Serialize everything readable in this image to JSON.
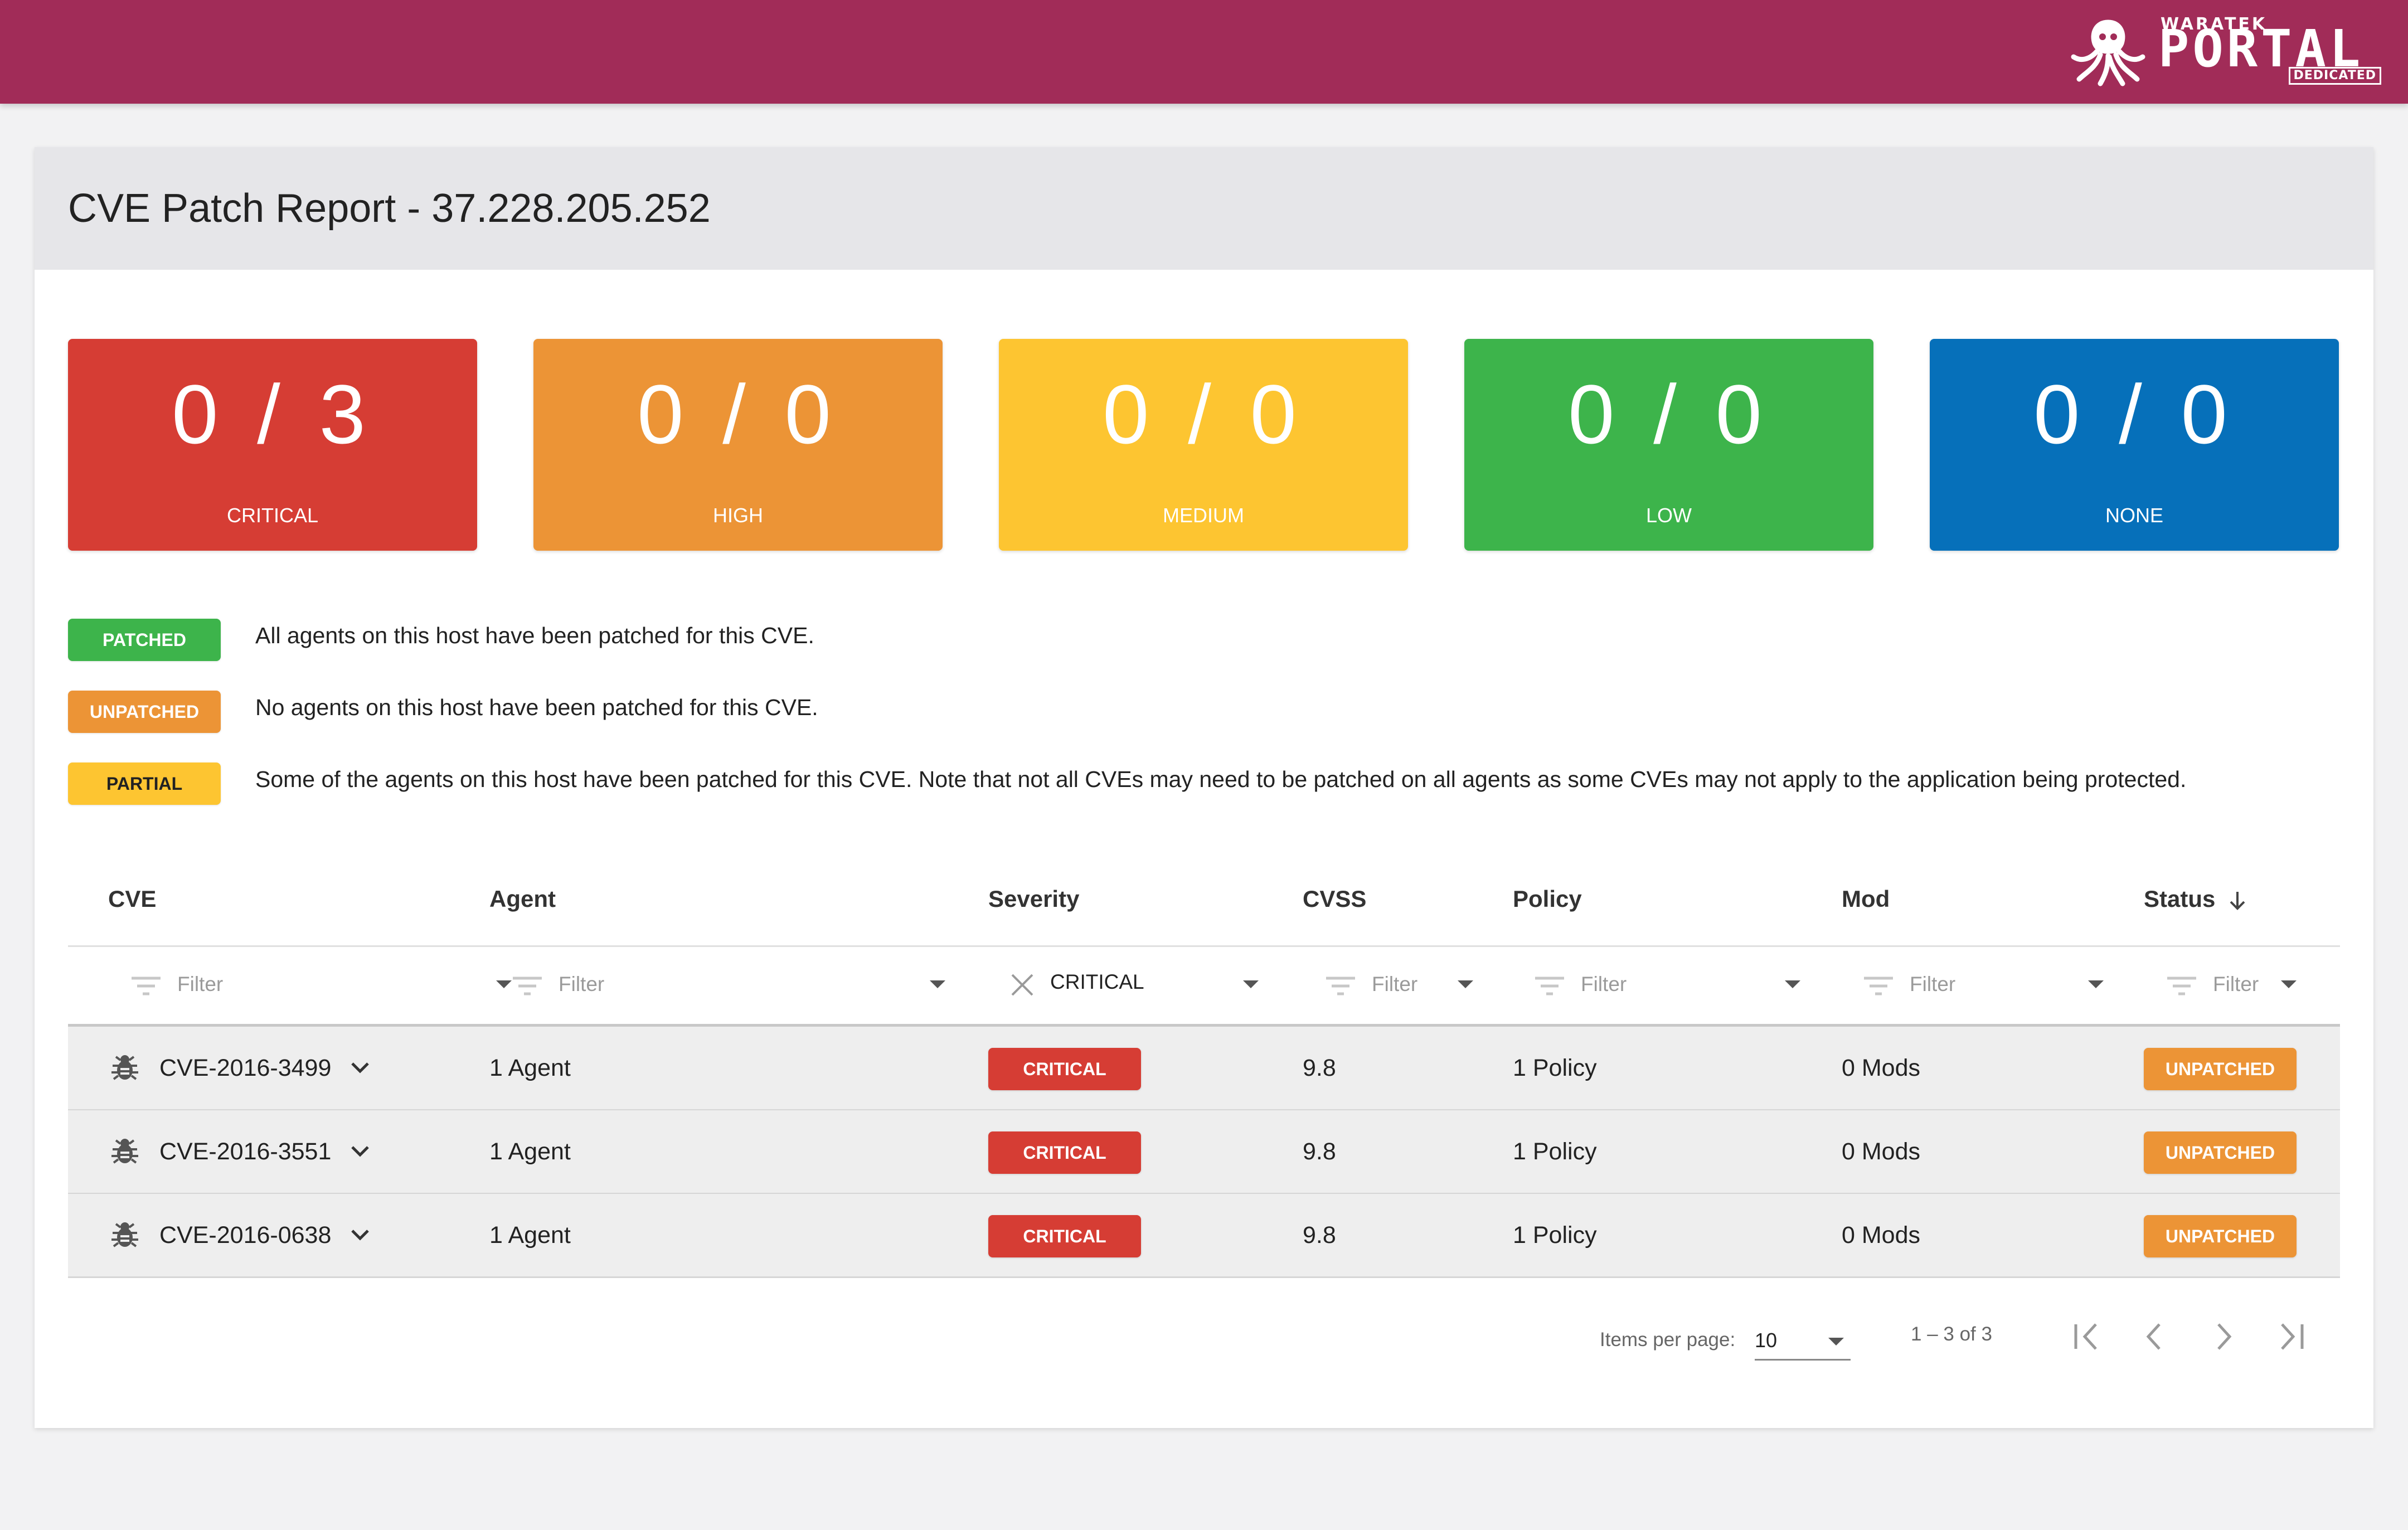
{
  "header": {
    "brand_small": "WARATEK",
    "brand_big": "PORTAL",
    "brand_tag": "DEDICATED",
    "color": "#a12c58"
  },
  "report": {
    "title": "CVE Patch Report - 37.228.205.252"
  },
  "summary_tiles": [
    {
      "value": "0 / 3",
      "label": "CRITICAL",
      "color": "#d63d34"
    },
    {
      "value": "0 / 0",
      "label": "HIGH",
      "color": "#ec9436"
    },
    {
      "value": "0 / 0",
      "label": "MEDIUM",
      "color": "#fdc531"
    },
    {
      "value": "0 / 0",
      "label": "LOW",
      "color": "#3db44b"
    },
    {
      "value": "0 / 0",
      "label": "NONE",
      "color": "#0670ba"
    }
  ],
  "legend": [
    {
      "badge": "PATCHED",
      "color": "#3db44b",
      "text_color": "#ffffff",
      "text": "All agents on this host have been patched for this CVE."
    },
    {
      "badge": "UNPATCHED",
      "color": "#ec9436",
      "text_color": "#ffffff",
      "text": "No agents on this host have been patched for this CVE."
    },
    {
      "badge": "PARTIAL",
      "color": "#fdc531",
      "text_color": "#222222",
      "text": "Some of the agents on this host have been patched for this CVE. Note that not all CVEs may need to be patched on all agents as some CVEs may not apply to the application being protected."
    }
  ],
  "table": {
    "columns": [
      "CVE",
      "Agent",
      "Severity",
      "CVSS",
      "Policy",
      "Mod",
      "Status"
    ],
    "sort_icon": "arrow-down-icon",
    "filters": {
      "cve": "Filter",
      "agent": "Filter",
      "severity": "CRITICAL",
      "cvss": "Filter",
      "policy": "Filter",
      "mod": "Filter",
      "status": "Filter"
    },
    "rows": [
      {
        "cve": "CVE-2016-3499",
        "agent": "1 Agent",
        "severity": "CRITICAL",
        "cvss": "9.8",
        "policy": "1 Policy",
        "mod": "0 Mods",
        "status": "UNPATCHED"
      },
      {
        "cve": "CVE-2016-3551",
        "agent": "1 Agent",
        "severity": "CRITICAL",
        "cvss": "9.8",
        "policy": "1 Policy",
        "mod": "0 Mods",
        "status": "UNPATCHED"
      },
      {
        "cve": "CVE-2016-0638",
        "agent": "1 Agent",
        "severity": "CRITICAL",
        "cvss": "9.8",
        "policy": "1 Policy",
        "mod": "0 Mods",
        "status": "UNPATCHED"
      }
    ]
  },
  "paginator": {
    "items_per_page_label": "Items per page:",
    "items_per_page": "10",
    "range": "1 – 3 of 3"
  },
  "colors": {
    "critical": "#d63d34",
    "unpatched": "#ec9436"
  }
}
